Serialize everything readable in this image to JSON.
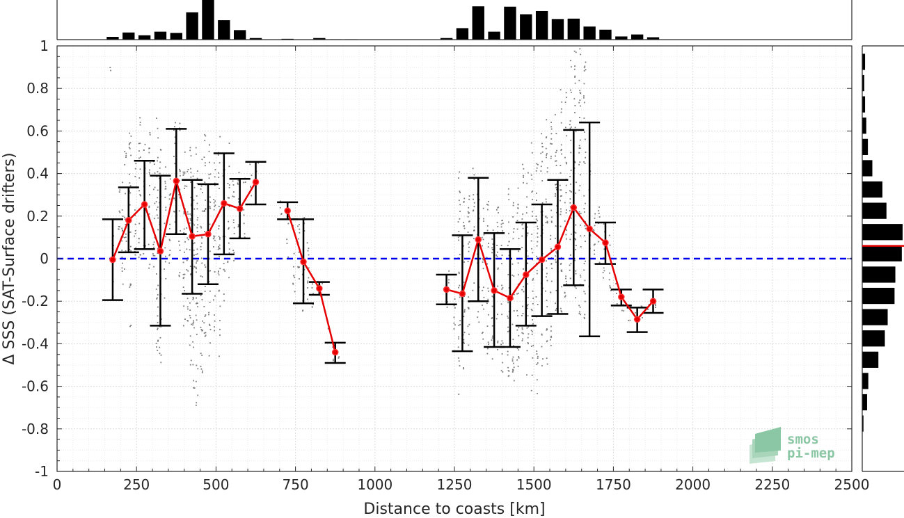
{
  "chart_data": {
    "type": "scatter",
    "xlabel": "Distance to coasts [km]",
    "ylabel": "Δ SSS (SAT-Surface drifters)",
    "xlim": [
      0,
      2500
    ],
    "ylim": [
      -1,
      1
    ],
    "xticks": [
      0,
      250,
      500,
      750,
      1000,
      1250,
      1500,
      1750,
      2000,
      2250,
      2500
    ],
    "yticks": [
      -1,
      -0.8,
      -0.6,
      -0.4,
      -0.2,
      0,
      0.2,
      0.4,
      0.6,
      0.8,
      1
    ],
    "grid": true,
    "zero_line": {
      "y": 0,
      "color": "#0000ee",
      "style": "dashed"
    },
    "bin_means": {
      "color": "#e60000",
      "segments": [
        [
          {
            "x": 175,
            "y": -0.005,
            "lo": -0.195,
            "hi": 0.185
          },
          {
            "x": 225,
            "y": 0.18,
            "lo": 0.03,
            "hi": 0.335
          },
          {
            "x": 275,
            "y": 0.255,
            "lo": 0.045,
            "hi": 0.46
          },
          {
            "x": 325,
            "y": 0.035,
            "lo": -0.315,
            "hi": 0.39
          },
          {
            "x": 375,
            "y": 0.365,
            "lo": 0.115,
            "hi": 0.61
          },
          {
            "x": 425,
            "y": 0.105,
            "lo": -0.165,
            "hi": 0.37
          },
          {
            "x": 475,
            "y": 0.115,
            "lo": -0.12,
            "hi": 0.35
          },
          {
            "x": 525,
            "y": 0.26,
            "lo": 0.02,
            "hi": 0.495
          },
          {
            "x": 575,
            "y": 0.235,
            "lo": 0.095,
            "hi": 0.375
          },
          {
            "x": 625,
            "y": 0.36,
            "lo": 0.255,
            "hi": 0.455
          }
        ],
        [
          {
            "x": 725,
            "y": 0.225,
            "lo": 0.185,
            "hi": 0.265
          },
          {
            "x": 775,
            "y": -0.015,
            "lo": -0.21,
            "hi": 0.185
          },
          {
            "x": 825,
            "y": -0.14,
            "lo": -0.17,
            "hi": -0.11
          },
          {
            "x": 875,
            "y": -0.44,
            "lo": -0.49,
            "hi": -0.395
          }
        ],
        [
          {
            "x": 1225,
            "y": -0.145,
            "lo": -0.215,
            "hi": -0.075
          },
          {
            "x": 1275,
            "y": -0.165,
            "lo": -0.435,
            "hi": 0.11
          },
          {
            "x": 1325,
            "y": 0.09,
            "lo": -0.2,
            "hi": 0.38
          },
          {
            "x": 1375,
            "y": -0.15,
            "lo": -0.415,
            "hi": 0.12
          },
          {
            "x": 1425,
            "y": -0.185,
            "lo": -0.415,
            "hi": 0.045
          },
          {
            "x": 1475,
            "y": -0.075,
            "lo": -0.315,
            "hi": 0.17
          },
          {
            "x": 1525,
            "y": -0.005,
            "lo": -0.27,
            "hi": 0.255
          },
          {
            "x": 1575,
            "y": 0.055,
            "lo": -0.26,
            "hi": 0.37
          },
          {
            "x": 1625,
            "y": 0.24,
            "lo": -0.125,
            "hi": 0.605
          },
          {
            "x": 1675,
            "y": 0.14,
            "lo": -0.365,
            "hi": 0.64
          },
          {
            "x": 1725,
            "y": 0.075,
            "lo": -0.025,
            "hi": 0.17
          },
          {
            "x": 1775,
            "y": -0.18,
            "lo": -0.22,
            "hi": -0.145
          },
          {
            "x": 1825,
            "y": -0.285,
            "lo": -0.345,
            "hi": -0.23
          },
          {
            "x": 1875,
            "y": -0.2,
            "lo": -0.255,
            "hi": -0.145
          }
        ]
      ]
    },
    "histogram_x": {
      "bins": [
        125,
        175,
        225,
        275,
        325,
        375,
        425,
        475,
        525,
        575,
        625,
        675,
        725,
        775,
        825,
        875,
        925,
        975,
        1025,
        1075,
        1125,
        1175,
        1225,
        1275,
        1325,
        1375,
        1425,
        1475,
        1525,
        1575,
        1625,
        1675,
        1725,
        1775,
        1825,
        1875,
        1925
      ],
      "counts": [
        0,
        7,
        18,
        11,
        20,
        17,
        69,
        100,
        49,
        24,
        4,
        0,
        2,
        0,
        4,
        1,
        1,
        0,
        0,
        0,
        0,
        0,
        4,
        29,
        84,
        20,
        83,
        64,
        72,
        52,
        53,
        33,
        25,
        8,
        13,
        6,
        0
      ]
    },
    "histogram_y": {
      "bins": [
        0.925,
        0.875,
        0.825,
        0.775,
        0.725,
        0.675,
        0.625,
        0.575,
        0.525,
        0.475,
        0.425,
        0.375,
        0.325,
        0.275,
        0.225,
        0.175,
        0.125,
        0.075,
        0.025,
        -0.025,
        -0.075,
        -0.125,
        -0.175,
        -0.225,
        -0.275,
        -0.325,
        -0.375,
        -0.425,
        -0.475,
        -0.525,
        -0.575,
        -0.625,
        -0.675,
        -0.725,
        -0.775,
        -0.825,
        -0.875,
        -0.925
      ],
      "counts": [
        7,
        0,
        5,
        0,
        7,
        0,
        10,
        0,
        14,
        0,
        25,
        0,
        50,
        0,
        60,
        0,
        100,
        0,
        98,
        0,
        82,
        0,
        80,
        0,
        63,
        0,
        56,
        0,
        40,
        0,
        15,
        0,
        12,
        0,
        3,
        0,
        0,
        0
      ],
      "median_line": {
        "y": 0.06,
        "color": "#e60000"
      }
    },
    "scatter": {
      "color": "#7a7a7a",
      "clusters": [
        [
          170,
          0.88,
          0.9
        ],
        [
          175,
          -0.2,
          0.18
        ],
        [
          195,
          0.05,
          0.35
        ],
        [
          205,
          -0.15,
          0.4
        ],
        [
          215,
          -0.05,
          0.55
        ],
        [
          230,
          -0.35,
          0.62
        ],
        [
          245,
          -0.05,
          0.45
        ],
        [
          260,
          0.0,
          0.7
        ],
        [
          275,
          0.02,
          0.55
        ],
        [
          290,
          -0.1,
          0.6
        ],
        [
          305,
          -0.05,
          0.5
        ],
        [
          315,
          -0.45,
          0.72
        ],
        [
          325,
          -0.5,
          0.55
        ],
        [
          340,
          -0.2,
          0.45
        ],
        [
          355,
          -0.05,
          0.5
        ],
        [
          370,
          0.1,
          0.7
        ],
        [
          385,
          -0.1,
          0.65
        ],
        [
          400,
          -0.35,
          0.55
        ],
        [
          410,
          -0.3,
          0.42
        ],
        [
          420,
          -0.5,
          0.55
        ],
        [
          430,
          -0.62,
          0.42
        ],
        [
          440,
          -0.72,
          0.6
        ],
        [
          455,
          -0.55,
          0.5
        ],
        [
          465,
          -0.4,
          0.62
        ],
        [
          480,
          -0.5,
          0.55
        ],
        [
          495,
          -0.35,
          0.5
        ],
        [
          510,
          -0.5,
          0.6
        ],
        [
          525,
          -0.2,
          0.5
        ],
        [
          540,
          -0.1,
          0.55
        ],
        [
          555,
          -0.05,
          0.38
        ],
        [
          570,
          0.05,
          0.42
        ],
        [
          590,
          0.1,
          0.4
        ],
        [
          610,
          0.25,
          0.45
        ],
        [
          630,
          0.3,
          0.45
        ],
        [
          705,
          0.15,
          0.3
        ],
        [
          725,
          0.0,
          0.28
        ],
        [
          745,
          -0.2,
          0.2
        ],
        [
          760,
          -0.2,
          0.18
        ],
        [
          775,
          -0.25,
          0.2
        ],
        [
          790,
          -0.2,
          0.15
        ],
        [
          805,
          -0.25,
          -0.05
        ],
        [
          820,
          -0.2,
          -0.1
        ],
        [
          835,
          -0.2,
          -0.1
        ],
        [
          855,
          -0.35,
          -0.3
        ],
        [
          870,
          -0.5,
          -0.4
        ],
        [
          885,
          -0.5,
          -0.45
        ],
        [
          1230,
          -0.25,
          -0.05
        ],
        [
          1250,
          -0.35,
          -0.1
        ],
        [
          1265,
          -0.65,
          0.42
        ],
        [
          1280,
          -0.55,
          0.3
        ],
        [
          1295,
          -0.5,
          0.35
        ],
        [
          1310,
          -0.2,
          0.45
        ],
        [
          1325,
          -0.3,
          0.38
        ],
        [
          1340,
          -0.45,
          0.25
        ],
        [
          1355,
          -0.45,
          0.3
        ],
        [
          1370,
          -0.5,
          0.2
        ],
        [
          1385,
          -0.45,
          0.3
        ],
        [
          1400,
          -0.55,
          0.25
        ],
        [
          1420,
          -0.6,
          0.35
        ],
        [
          1435,
          -0.6,
          0.3
        ],
        [
          1450,
          -0.55,
          0.38
        ],
        [
          1465,
          -0.5,
          0.45
        ],
        [
          1480,
          -0.55,
          0.5
        ],
        [
          1495,
          -0.65,
          0.55
        ],
        [
          1510,
          -0.7,
          0.45
        ],
        [
          1525,
          -0.6,
          0.6
        ],
        [
          1540,
          -0.5,
          0.7
        ],
        [
          1555,
          -0.45,
          0.65
        ],
        [
          1570,
          -0.3,
          0.75
        ],
        [
          1585,
          -0.25,
          0.85
        ],
        [
          1600,
          -0.2,
          0.8
        ],
        [
          1615,
          -0.1,
          0.95
        ],
        [
          1630,
          -0.2,
          0.98
        ],
        [
          1645,
          -0.3,
          1.0
        ],
        [
          1660,
          -0.3,
          0.95
        ],
        [
          1675,
          -0.15,
          0.5
        ],
        [
          1690,
          -0.05,
          0.3
        ],
        [
          1705,
          -0.05,
          0.25
        ],
        [
          1720,
          -0.1,
          0.2
        ],
        [
          1740,
          -0.15,
          0.15
        ],
        [
          1760,
          -0.22,
          -0.1
        ],
        [
          1780,
          -0.25,
          -0.15
        ],
        [
          1800,
          -0.3,
          -0.2
        ],
        [
          1820,
          -0.32,
          -0.22
        ],
        [
          1840,
          -0.32,
          -0.22
        ],
        [
          1860,
          -0.3,
          -0.2
        ],
        [
          1880,
          -0.28,
          -0.15
        ]
      ]
    }
  },
  "logo": {
    "line1": "smos",
    "line2": "pi-mep"
  }
}
